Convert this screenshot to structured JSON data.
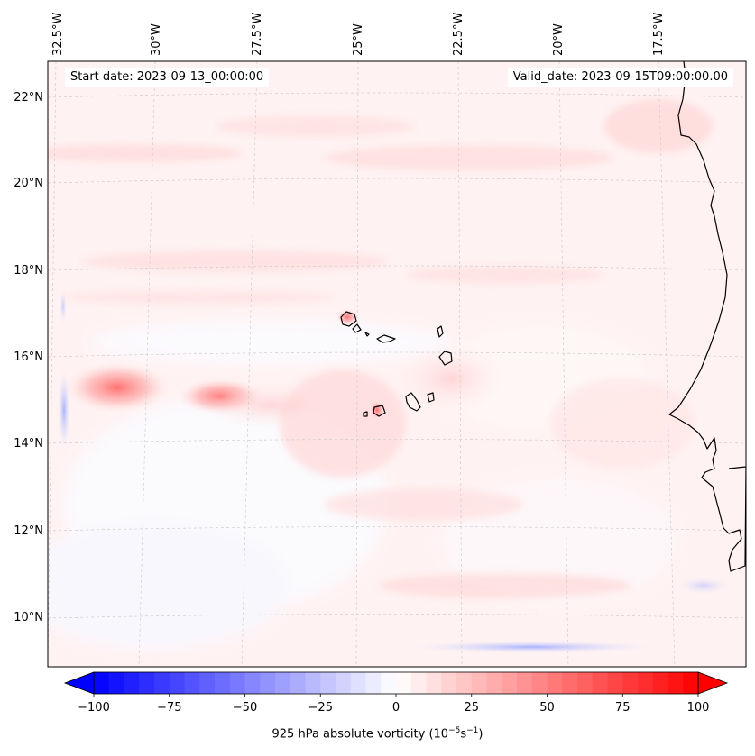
{
  "map": {
    "start_date": "Start date: 2023-09-13_00:00:00",
    "valid_date": "Valid_date: 2023-09-15T09:00:00.00",
    "longitude_labels": [
      "32.5°W",
      "30°W",
      "27.5°W",
      "25°W",
      "22.5°W",
      "20°W",
      "17.5°W"
    ],
    "latitude_labels": [
      "22°N",
      "20°N",
      "18°N",
      "16°N",
      "14°N",
      "12°N",
      "10°N"
    ]
  },
  "colorbar": {
    "ticks": [
      "−100",
      "−75",
      "−50",
      "−25",
      "0",
      "25",
      "50",
      "75",
      "100"
    ],
    "tick_values": [
      -100,
      -75,
      -50,
      -25,
      0,
      25,
      50,
      75,
      100
    ],
    "range": [
      -100,
      100
    ],
    "label_main": "925 hPa absolute vorticity (10",
    "label_exp1": "−5",
    "label_mid": "s",
    "label_exp2": "−1",
    "label_end": ")",
    "colormap": "bwr",
    "low_color": "#0000ff",
    "mid_color": "#ffffff",
    "high_color": "#ff0000"
  }
}
